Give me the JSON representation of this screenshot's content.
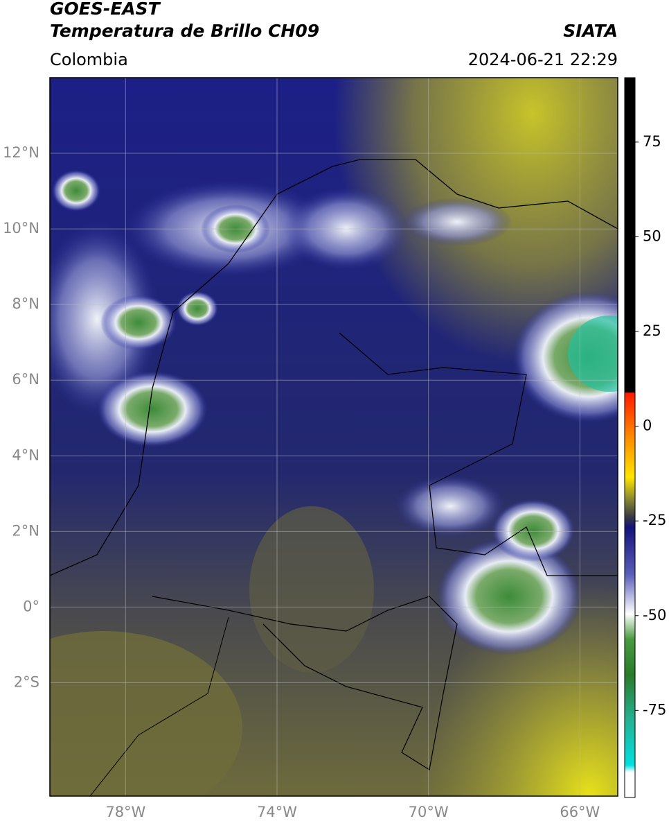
{
  "header": {
    "title": "GOES-EAST",
    "subtitle": "Temperatura de Brillo CH09",
    "source": "SIATA",
    "region": "Colombia",
    "timestamp": "2024-06-21 22:29"
  },
  "map": {
    "xlim": [
      -80,
      -65
    ],
    "ylim": [
      -5,
      14
    ],
    "xticks": [
      {
        "value": -78,
        "label": "78°W"
      },
      {
        "value": -74,
        "label": "74°W"
      },
      {
        "value": -70,
        "label": "70°W"
      },
      {
        "value": -66,
        "label": "66°W"
      }
    ],
    "yticks": [
      {
        "value": 12,
        "label": "12°N"
      },
      {
        "value": 10,
        "label": "10°N"
      },
      {
        "value": 8,
        "label": "8°N"
      },
      {
        "value": 6,
        "label": "6°N"
      },
      {
        "value": 4,
        "label": "4°N"
      },
      {
        "value": 2,
        "label": "2°N"
      },
      {
        "value": 0,
        "label": "0°"
      },
      {
        "value": -2,
        "label": "2°S"
      }
    ],
    "grid": true
  },
  "colorbar": {
    "lim": [
      -98,
      92
    ],
    "ticks": [
      75,
      50,
      25,
      0,
      -25,
      -50,
      -75
    ]
  }
}
